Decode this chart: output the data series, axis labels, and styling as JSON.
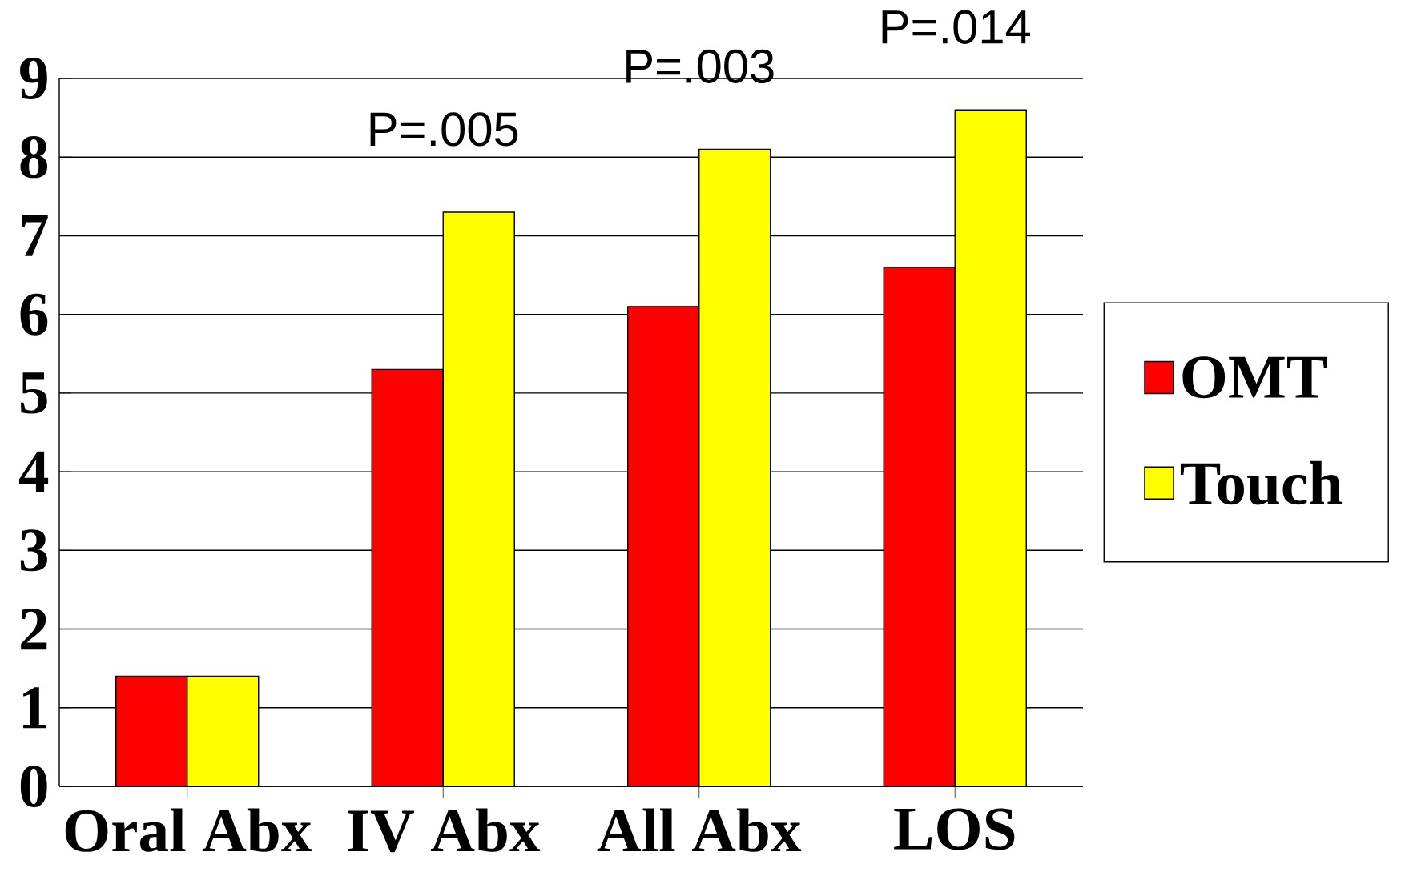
{
  "chart_data": {
    "type": "bar",
    "categories": [
      "Oral Abx",
      "IV Abx",
      "All Abx",
      "LOS"
    ],
    "series": [
      {
        "name": "OMT",
        "color": "#ff0000",
        "values": [
          1.4,
          5.3,
          6.1,
          6.6
        ]
      },
      {
        "name": "Touch",
        "color": "#ffff00",
        "values": [
          1.4,
          7.3,
          8.1,
          8.6
        ]
      }
    ],
    "ylim": [
      0,
      9
    ],
    "yticks": [
      0,
      1,
      2,
      3,
      4,
      5,
      6,
      7,
      8,
      9
    ],
    "grid": "y",
    "legend": "right",
    "annotations": [
      "P=.005",
      "P=.003",
      "P=.014"
    ]
  }
}
